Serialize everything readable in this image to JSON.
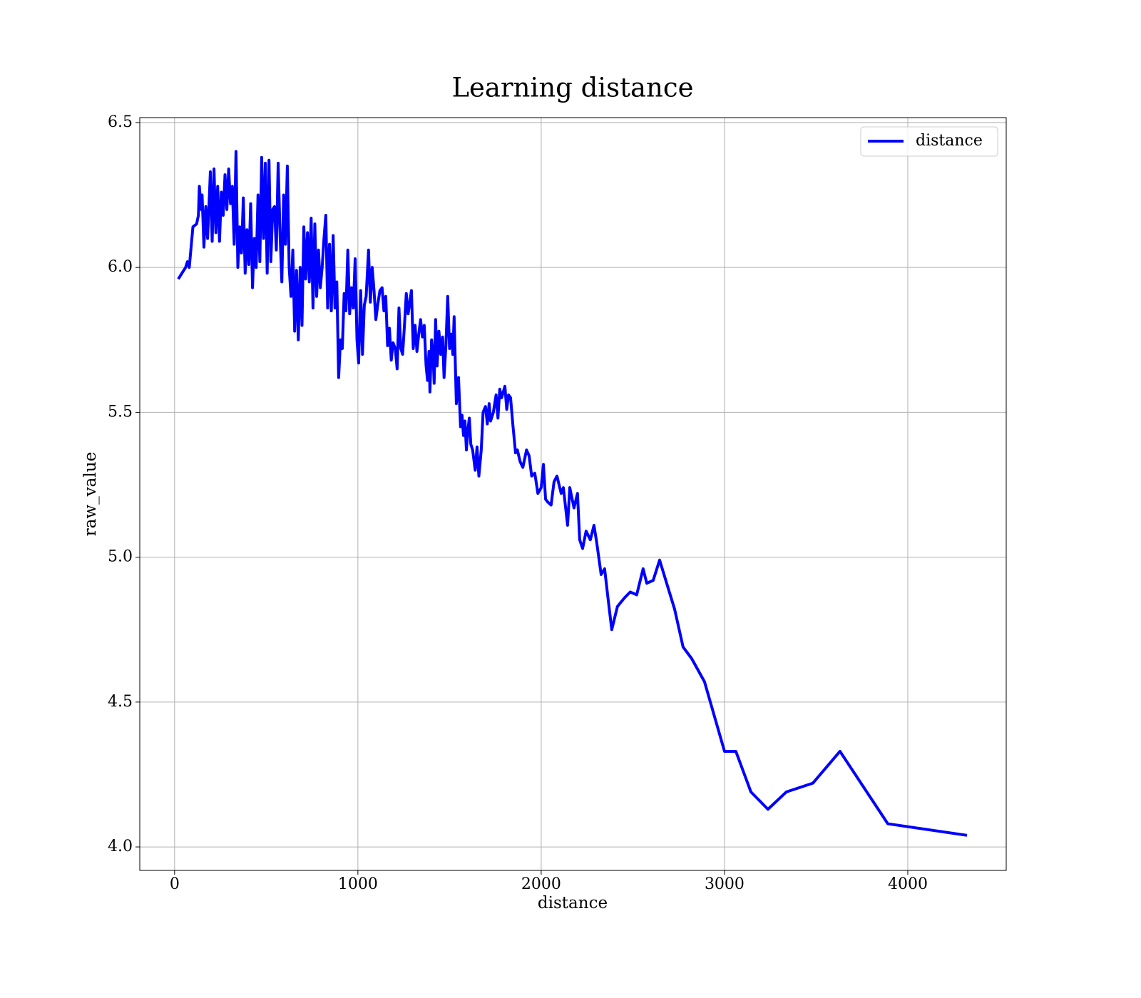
{
  "chart_data": {
    "type": "line",
    "title": "Learning distance",
    "xlabel": "distance",
    "ylabel": "raw_value",
    "x": [
      20,
      60,
      70,
      80,
      100,
      120,
      130,
      135,
      145,
      150,
      160,
      170,
      180,
      190,
      195,
      205,
      215,
      225,
      235,
      245,
      255,
      265,
      275,
      285,
      295,
      305,
      315,
      325,
      335,
      345,
      355,
      365,
      375,
      385,
      395,
      405,
      415,
      425,
      435,
      445,
      455,
      465,
      475,
      485,
      495,
      505,
      515,
      525,
      535,
      545,
      555,
      565,
      575,
      585,
      595,
      605,
      615,
      625,
      635,
      645,
      655,
      665,
      675,
      685,
      695,
      705,
      715,
      725,
      735,
      745,
      755,
      765,
      775,
      785,
      795,
      805,
      815,
      825,
      835,
      845,
      855,
      865,
      875,
      885,
      895,
      905,
      915,
      925,
      935,
      945,
      955,
      965,
      975,
      985,
      995,
      1004,
      1015,
      1025,
      1035,
      1045,
      1058,
      1068,
      1078,
      1088,
      1098,
      1108,
      1120,
      1132,
      1142,
      1152,
      1162,
      1172,
      1182,
      1192,
      1204,
      1214,
      1224,
      1234,
      1244,
      1254,
      1264,
      1274,
      1292,
      1302,
      1312,
      1322,
      1332,
      1342,
      1352,
      1362,
      1372,
      1380,
      1388,
      1393,
      1402,
      1410,
      1416,
      1424,
      1432,
      1442,
      1452,
      1462,
      1470,
      1480,
      1490,
      1500,
      1510,
      1518,
      1525,
      1537,
      1549,
      1560,
      1568,
      1576,
      1584,
      1592,
      1600,
      1608,
      1616,
      1626,
      1640,
      1650,
      1660,
      1673,
      1683,
      1696,
      1706,
      1716,
      1724,
      1739,
      1754,
      1764,
      1774,
      1784,
      1802,
      1812,
      1822,
      1833,
      1845,
      1860,
      1870,
      1885,
      1900,
      1920,
      1934,
      1948,
      1965,
      1982,
      2000,
      2012,
      2024,
      2036,
      2054,
      2070,
      2086,
      2109,
      2121,
      2144,
      2156,
      2179,
      2198,
      2210,
      2226,
      2245,
      2268,
      2288,
      2303,
      2327,
      2346,
      2366,
      2385,
      2416,
      2455,
      2486,
      2521,
      2556,
      2576,
      2611,
      2646,
      2728,
      2774,
      2821,
      2891,
      3000,
      3062,
      3144,
      3237,
      3338,
      3482,
      3630,
      3891,
      4323
    ],
    "series": [
      {
        "name": "distance",
        "color": "#0000ff",
        "values": [
          5.96,
          6.0,
          6.02,
          6.0,
          6.14,
          6.15,
          6.18,
          6.28,
          6.2,
          6.25,
          6.07,
          6.21,
          6.1,
          6.25,
          6.33,
          6.09,
          6.34,
          6.12,
          6.28,
          6.09,
          6.26,
          6.18,
          6.32,
          6.2,
          6.34,
          6.22,
          6.28,
          6.08,
          6.4,
          6.0,
          6.14,
          6.05,
          6.24,
          5.98,
          6.13,
          6.01,
          6.22,
          5.93,
          6.1,
          6.0,
          6.25,
          6.02,
          6.38,
          6.1,
          6.36,
          5.98,
          6.37,
          6.02,
          6.2,
          6.21,
          6.06,
          6.36,
          6.12,
          5.95,
          6.25,
          6.08,
          6.35,
          6.0,
          5.9,
          6.06,
          5.78,
          5.99,
          5.75,
          6.0,
          5.8,
          6.14,
          5.96,
          6.12,
          5.95,
          6.17,
          5.86,
          6.15,
          5.9,
          6.06,
          5.93,
          6.0,
          6.1,
          6.18,
          5.86,
          6.08,
          5.85,
          6.11,
          5.86,
          5.95,
          5.62,
          5.75,
          5.72,
          5.91,
          5.85,
          6.06,
          5.84,
          5.93,
          5.86,
          6.03,
          5.75,
          5.67,
          5.92,
          5.7,
          5.87,
          5.9,
          6.06,
          5.88,
          6.0,
          5.92,
          5.82,
          5.87,
          5.92,
          5.93,
          5.85,
          5.9,
          5.73,
          5.79,
          5.68,
          5.74,
          5.72,
          5.65,
          5.86,
          5.72,
          5.7,
          5.8,
          5.91,
          5.84,
          5.92,
          5.72,
          5.8,
          5.71,
          5.77,
          5.82,
          5.76,
          5.8,
          5.66,
          5.61,
          5.71,
          5.57,
          5.75,
          5.7,
          5.6,
          5.82,
          5.66,
          5.78,
          5.7,
          5.76,
          5.62,
          5.73,
          5.9,
          5.72,
          5.77,
          5.7,
          5.83,
          5.53,
          5.62,
          5.45,
          5.49,
          5.42,
          5.47,
          5.37,
          5.44,
          5.48,
          5.39,
          5.37,
          5.3,
          5.38,
          5.28,
          5.37,
          5.5,
          5.52,
          5.46,
          5.53,
          5.47,
          5.5,
          5.56,
          5.48,
          5.58,
          5.55,
          5.59,
          5.51,
          5.56,
          5.55,
          5.46,
          5.36,
          5.37,
          5.33,
          5.31,
          5.37,
          5.35,
          5.28,
          5.29,
          5.22,
          5.24,
          5.32,
          5.2,
          5.19,
          5.18,
          5.26,
          5.28,
          5.22,
          5.24,
          5.11,
          5.24,
          5.17,
          5.22,
          5.06,
          5.03,
          5.09,
          5.06,
          5.11,
          5.05,
          4.94,
          4.96,
          4.85,
          4.75,
          4.83,
          4.86,
          4.88,
          4.87,
          4.96,
          4.91,
          4.92,
          4.99,
          4.82,
          4.69,
          4.65,
          4.57,
          4.33,
          4.33,
          4.19,
          4.13,
          4.19,
          4.22,
          4.33,
          4.08,
          4.04
        ]
      }
    ],
    "xlim": [
      -190,
      4537
    ],
    "ylim": [
      3.919,
      6.517
    ],
    "xticks": [
      0,
      1000,
      2000,
      3000,
      4000
    ],
    "yticks": [
      {
        "value": 4,
        "label": "4.0"
      },
      4.5,
      {
        "value": 5,
        "label": "5.0"
      },
      5.5,
      {
        "value": 6,
        "label": "6.0"
      },
      6.5
    ],
    "grid": true,
    "legend": "upper right"
  }
}
